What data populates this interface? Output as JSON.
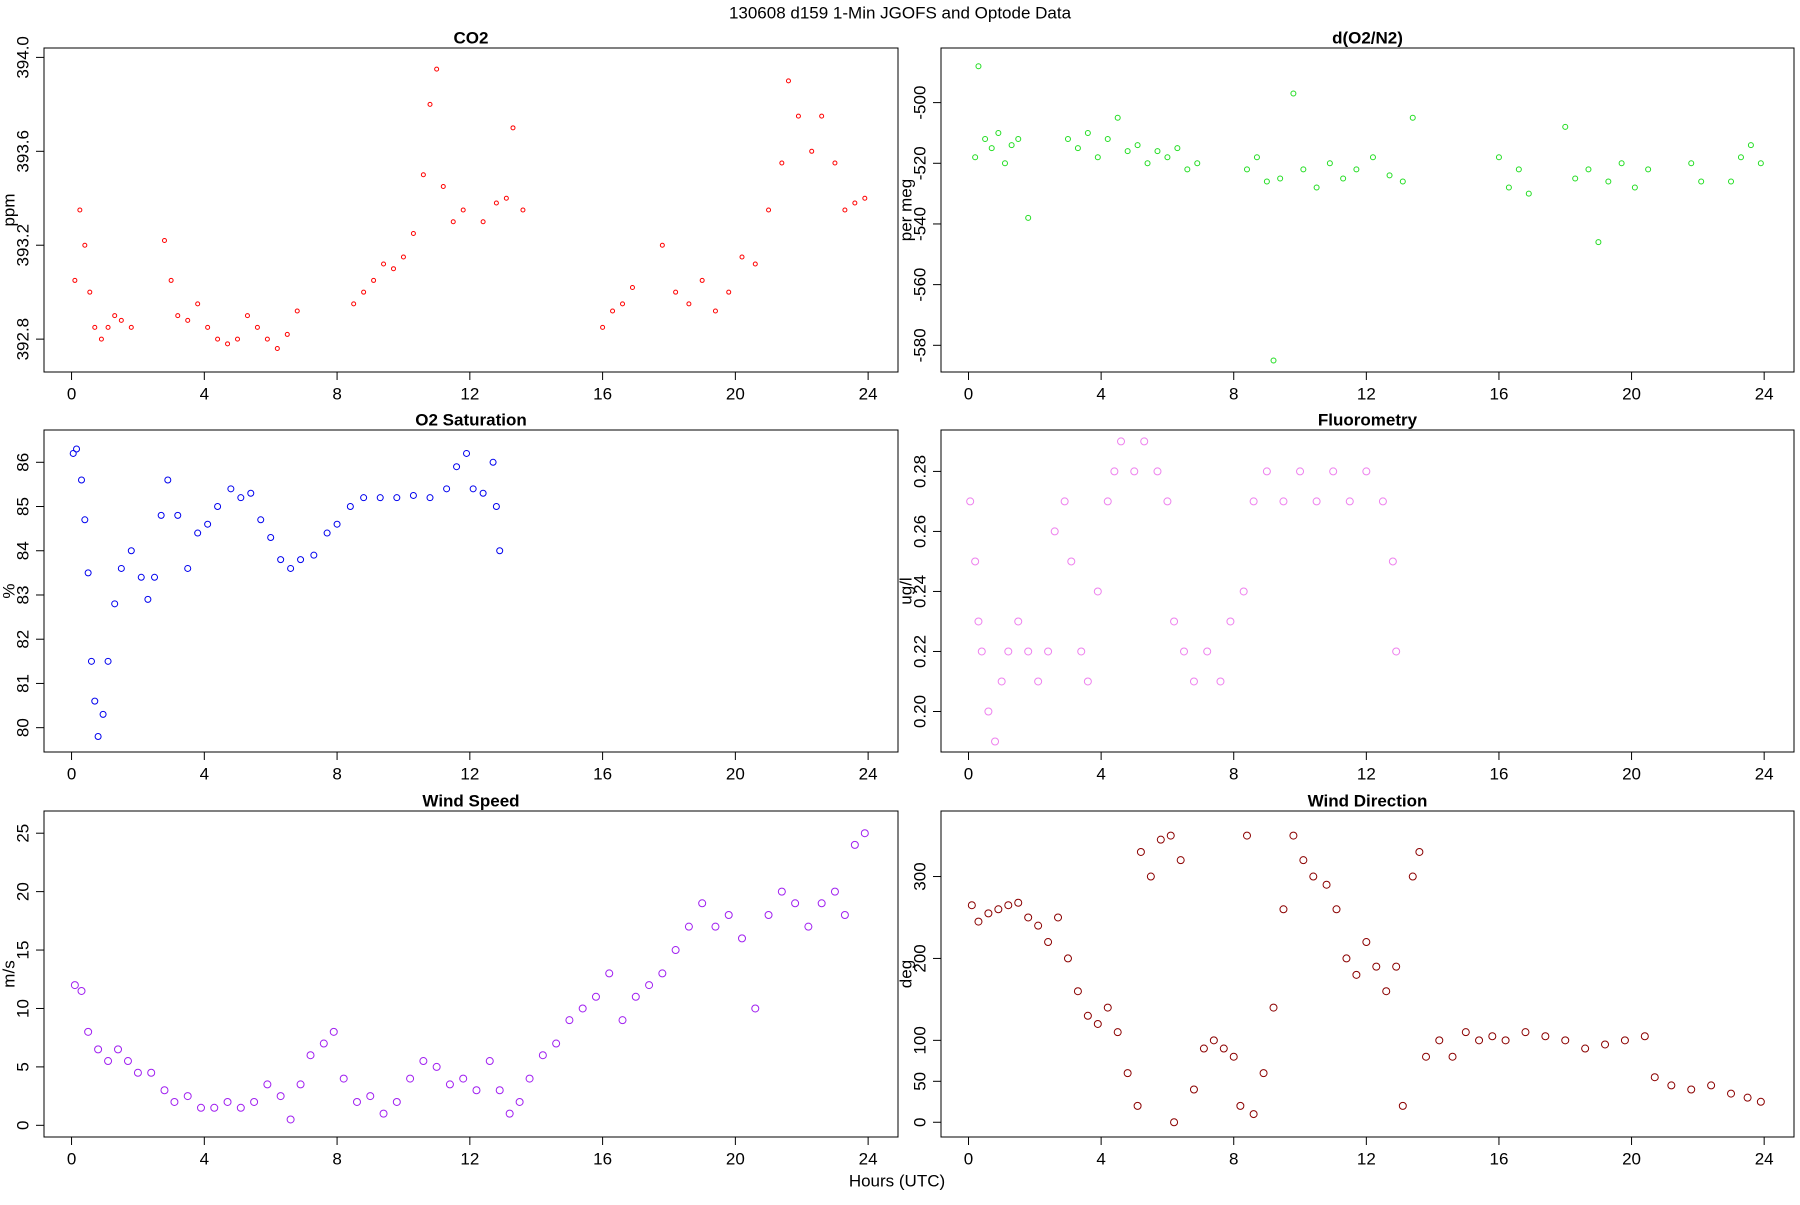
{
  "title": "130608   d159   1-Min  JGOFS and Optode Data",
  "xlabel": "Hours (UTC)",
  "chart_data": [
    {
      "type": "scatter",
      "title": "CO2",
      "ylabel": "ppm",
      "color": "#ff0000",
      "marker_size": 2,
      "xlim": [
        -0.83,
        24.9
      ],
      "xticks": [
        0,
        4,
        8,
        12,
        16,
        20,
        24
      ],
      "ylim": [
        392.66,
        394.04
      ],
      "yticks": [
        392.8,
        393.2,
        393.6,
        {
          "value": 394,
          "label": "394.0"
        }
      ],
      "x": [
        0.1,
        0.25,
        0.4,
        0.55,
        0.7,
        0.9,
        1.1,
        1.3,
        1.5,
        1.8,
        2.8,
        3.0,
        3.2,
        3.5,
        3.8,
        4.1,
        4.4,
        4.7,
        5.0,
        5.3,
        5.6,
        5.9,
        6.2,
        6.5,
        6.8,
        8.5,
        8.8,
        9.1,
        9.4,
        9.7,
        10.0,
        10.3,
        10.6,
        10.8,
        11.0,
        11.2,
        11.5,
        11.8,
        12.4,
        12.8,
        13.1,
        13.3,
        13.6,
        16.0,
        16.3,
        16.6,
        16.9,
        17.8,
        18.2,
        18.6,
        19.0,
        19.4,
        19.8,
        20.2,
        20.6,
        21.0,
        21.4,
        21.6,
        21.9,
        22.3,
        22.6,
        23.0,
        23.3,
        23.6,
        23.9
      ],
      "y": [
        393.05,
        393.35,
        393.2,
        393.0,
        392.85,
        392.8,
        392.85,
        392.9,
        392.88,
        392.85,
        393.22,
        393.05,
        392.9,
        392.88,
        392.95,
        392.85,
        392.8,
        392.78,
        392.8,
        392.9,
        392.85,
        392.8,
        392.76,
        392.82,
        392.92,
        392.95,
        393.0,
        393.05,
        393.12,
        393.1,
        393.15,
        393.25,
        393.5,
        393.8,
        393.95,
        393.45,
        393.3,
        393.35,
        393.3,
        393.38,
        393.4,
        393.7,
        393.35,
        392.85,
        392.92,
        392.95,
        393.02,
        393.2,
        393.0,
        392.95,
        393.05,
        392.92,
        393.0,
        393.15,
        393.12,
        393.35,
        393.55,
        393.9,
        393.75,
        393.6,
        393.75,
        393.55,
        393.35,
        393.38,
        393.4
      ]
    },
    {
      "type": "scatter",
      "title": "d(O2/N2)",
      "ylabel": "per meg",
      "color": "#22dd22",
      "marker_size": 2.5,
      "xlim": [
        -0.83,
        24.9
      ],
      "xticks": [
        0,
        4,
        8,
        12,
        16,
        20,
        24
      ],
      "ylim": [
        -588.8,
        -482
      ],
      "yticks": [
        -580,
        -560,
        -540,
        -520,
        -500
      ],
      "x": [
        0.2,
        0.3,
        0.5,
        0.7,
        0.9,
        1.1,
        1.3,
        1.5,
        1.8,
        3.0,
        3.3,
        3.6,
        3.9,
        4.2,
        4.5,
        4.8,
        5.1,
        5.4,
        5.7,
        6.0,
        6.3,
        6.6,
        6.9,
        8.4,
        8.7,
        9.0,
        9.2,
        9.4,
        9.8,
        10.1,
        10.5,
        10.9,
        11.3,
        11.7,
        12.2,
        12.7,
        13.1,
        13.4,
        16.0,
        16.3,
        16.6,
        16.9,
        18.0,
        18.3,
        18.7,
        19.0,
        19.3,
        19.7,
        20.1,
        20.5,
        21.8,
        22.1,
        23.0,
        23.3,
        23.6,
        23.9
      ],
      "y": [
        -518,
        -488,
        -512,
        -515,
        -510,
        -520,
        -514,
        -512,
        -538,
        -512,
        -515,
        -510,
        -518,
        -512,
        -505,
        -516,
        -514,
        -520,
        -516,
        -518,
        -515,
        -522,
        -520,
        -522,
        -518,
        -526,
        -585,
        -525,
        -497,
        -522,
        -528,
        -520,
        -525,
        -522,
        -518,
        -524,
        -526,
        -505,
        -518,
        -528,
        -522,
        -530,
        -508,
        -525,
        -522,
        -546,
        -526,
        -520,
        -528,
        -522,
        -520,
        -526,
        -526,
        -518,
        -514,
        -520
      ]
    },
    {
      "type": "scatter",
      "title": "O2 Saturation",
      "ylabel": "%",
      "color": "#0000ee",
      "marker_size": 3,
      "xlim": [
        -0.83,
        24.9
      ],
      "xticks": [
        0,
        4,
        8,
        12,
        16,
        20,
        24
      ],
      "ylim": [
        79.45,
        86.73
      ],
      "yticks": [
        80,
        81,
        82,
        83,
        84,
        85,
        86
      ],
      "x": [
        0.05,
        0.15,
        0.3,
        0.4,
        0.5,
        0.6,
        0.7,
        0.8,
        0.95,
        1.1,
        1.3,
        1.5,
        1.8,
        2.1,
        2.3,
        2.5,
        2.7,
        2.9,
        3.2,
        3.5,
        3.8,
        4.1,
        4.4,
        4.8,
        5.1,
        5.4,
        5.7,
        6.0,
        6.3,
        6.6,
        6.9,
        7.3,
        7.7,
        8.0,
        8.4,
        8.8,
        9.3,
        9.8,
        10.3,
        10.8,
        11.3,
        11.6,
        11.9,
        12.1,
        12.4,
        12.7,
        12.8,
        12.9
      ],
      "y": [
        86.2,
        86.3,
        85.6,
        84.7,
        83.5,
        81.5,
        80.6,
        79.8,
        80.3,
        81.5,
        82.8,
        83.6,
        84.0,
        83.4,
        82.9,
        83.4,
        84.8,
        85.6,
        84.8,
        83.6,
        84.4,
        84.6,
        85.0,
        85.4,
        85.2,
        85.3,
        84.7,
        84.3,
        83.8,
        83.6,
        83.8,
        83.9,
        84.4,
        84.6,
        85.0,
        85.2,
        85.2,
        85.2,
        85.25,
        85.2,
        85.4,
        85.9,
        86.2,
        85.4,
        85.3,
        86.0,
        85.0,
        84.0
      ]
    },
    {
      "type": "scatter",
      "title": "Fluorometry",
      "ylabel": "ug/l",
      "color": "#ee82ee",
      "marker_size": 3.5,
      "xlim": [
        -0.83,
        24.9
      ],
      "xticks": [
        0,
        4,
        8,
        12,
        16,
        20,
        24
      ],
      "ylim": [
        0.1865,
        0.2938
      ],
      "yticks": [
        {
          "value": 0.2,
          "label": "0.20"
        },
        0.22,
        0.24,
        0.26,
        0.28
      ],
      "x": [
        0.05,
        0.2,
        0.3,
        0.4,
        0.6,
        0.8,
        1.0,
        1.2,
        1.5,
        1.8,
        2.1,
        2.4,
        2.6,
        2.9,
        3.1,
        3.4,
        3.6,
        3.9,
        4.2,
        4.4,
        4.6,
        5.0,
        5.3,
        5.7,
        6.0,
        6.2,
        6.5,
        6.8,
        7.2,
        7.6,
        7.9,
        8.3,
        8.6,
        9.0,
        9.5,
        10.0,
        10.5,
        11.0,
        11.5,
        12.0,
        12.5,
        12.8,
        12.9
      ],
      "y": [
        0.27,
        0.25,
        0.23,
        0.22,
        0.2,
        0.19,
        0.21,
        0.22,
        0.23,
        0.22,
        0.21,
        0.22,
        0.26,
        0.27,
        0.25,
        0.22,
        0.21,
        0.24,
        0.27,
        0.28,
        0.29,
        0.28,
        0.29,
        0.28,
        0.27,
        0.23,
        0.22,
        0.21,
        0.22,
        0.21,
        0.23,
        0.24,
        0.27,
        0.28,
        0.27,
        0.28,
        0.27,
        0.28,
        0.27,
        0.28,
        0.27,
        0.25,
        0.22
      ]
    },
    {
      "type": "scatter",
      "title": "Wind Speed",
      "ylabel": "m/s",
      "color": "#a020f0",
      "marker_size": 3.5,
      "xlim": [
        -0.83,
        24.9
      ],
      "xticks": [
        0,
        4,
        8,
        12,
        16,
        20,
        24
      ],
      "ylim": [
        -1.0,
        26.9
      ],
      "yticks": [
        0,
        5,
        10,
        15,
        20,
        25
      ],
      "x": [
        0.1,
        0.3,
        0.5,
        0.8,
        1.1,
        1.4,
        1.7,
        2.0,
        2.4,
        2.8,
        3.1,
        3.5,
        3.9,
        4.3,
        4.7,
        5.1,
        5.5,
        5.9,
        6.3,
        6.6,
        6.9,
        7.2,
        7.6,
        7.9,
        8.2,
        8.6,
        9.0,
        9.4,
        9.8,
        10.2,
        10.6,
        11.0,
        11.4,
        11.8,
        12.2,
        12.6,
        12.9,
        13.2,
        13.5,
        13.8,
        14.2,
        14.6,
        15.0,
        15.4,
        15.8,
        16.2,
        16.6,
        17.0,
        17.4,
        17.8,
        18.2,
        18.6,
        19.0,
        19.4,
        19.8,
        20.2,
        20.6,
        21.0,
        21.4,
        21.8,
        22.2,
        22.6,
        23.0,
        23.3,
        23.6,
        23.9
      ],
      "y": [
        12,
        11.5,
        8,
        6.5,
        5.5,
        6.5,
        5.5,
        4.5,
        4.5,
        3,
        2,
        2.5,
        1.5,
        1.5,
        2,
        1.5,
        2,
        3.5,
        2.5,
        0.5,
        3.5,
        6,
        7,
        8,
        4,
        2,
        2.5,
        1,
        2,
        4,
        5.5,
        5,
        3.5,
        4,
        3,
        5.5,
        3,
        1,
        2,
        4,
        6,
        7,
        9,
        10,
        11,
        13,
        9,
        11,
        12,
        13,
        15,
        17,
        19,
        17,
        18,
        16,
        10,
        18,
        20,
        19,
        17,
        19,
        20,
        18,
        24,
        25
      ]
    },
    {
      "type": "scatter",
      "title": "Wind Direction",
      "ylabel": "deg",
      "color": "#8b0000",
      "marker_size": 3.5,
      "xlim": [
        -0.83,
        24.9
      ],
      "xticks": [
        0,
        4,
        8,
        12,
        16,
        20,
        24
      ],
      "ylim": [
        -18,
        380
      ],
      "yticks": [
        0,
        50,
        100,
        200,
        300
      ],
      "x": [
        0.1,
        0.3,
        0.6,
        0.9,
        1.2,
        1.5,
        1.8,
        2.1,
        2.4,
        2.7,
        3.0,
        3.3,
        3.6,
        3.9,
        4.2,
        4.5,
        4.8,
        5.1,
        5.2,
        5.5,
        5.8,
        6.1,
        6.4,
        6.2,
        6.8,
        7.1,
        7.4,
        7.7,
        8.0,
        8.2,
        8.4,
        8.6,
        8.9,
        9.2,
        9.5,
        9.8,
        10.1,
        10.4,
        10.8,
        11.1,
        11.4,
        11.7,
        12.0,
        12.3,
        12.6,
        12.9,
        13.1,
        13.4,
        13.6,
        13.8,
        14.2,
        14.6,
        15.0,
        15.4,
        15.8,
        16.2,
        16.8,
        17.4,
        18.0,
        18.6,
        19.2,
        19.8,
        20.4,
        20.7,
        21.2,
        21.8,
        22.4,
        23.0,
        23.5,
        23.9
      ],
      "y": [
        265,
        245,
        255,
        260,
        265,
        268,
        250,
        240,
        220,
        250,
        200,
        160,
        130,
        120,
        140,
        110,
        60,
        20,
        330,
        300,
        345,
        350,
        320,
        0,
        40,
        90,
        100,
        90,
        80,
        20,
        350,
        10,
        60,
        140,
        260,
        350,
        320,
        300,
        290,
        260,
        200,
        180,
        220,
        190,
        160,
        190,
        20,
        300,
        330,
        80,
        100,
        80,
        110,
        100,
        105,
        100,
        110,
        105,
        100,
        90,
        95,
        100,
        105,
        55,
        45,
        40,
        45,
        35,
        30,
        25
      ]
    }
  ]
}
